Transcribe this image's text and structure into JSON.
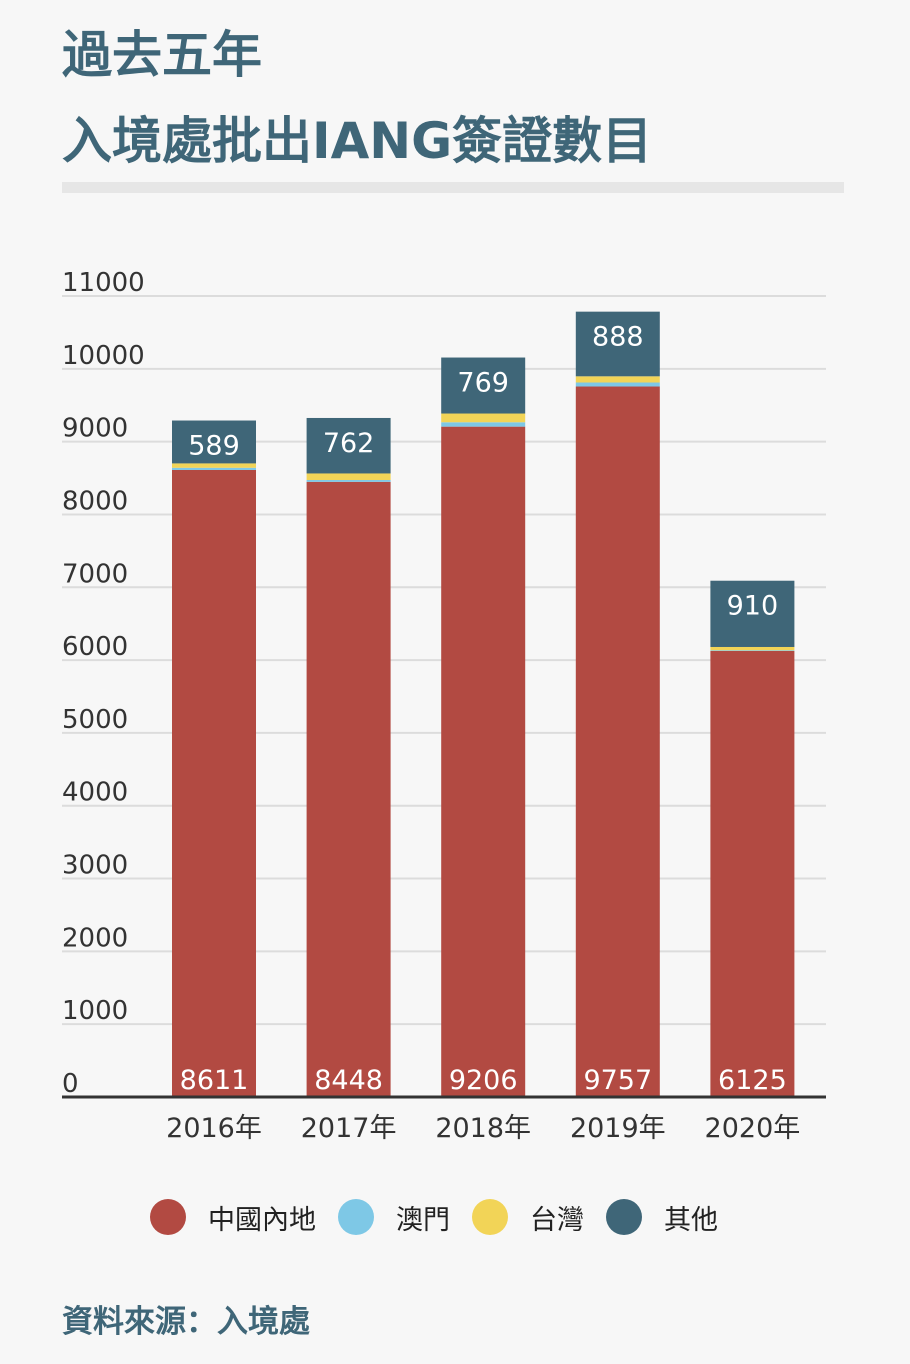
{
  "title": {
    "line1": "過去五年",
    "line2": "入境處批出IANG簽證數目"
  },
  "source": "資料來源：入境處",
  "colors": {
    "mainland": "#b24a42",
    "macau": "#7ec8e6",
    "taiwan": "#f2d457",
    "others": "#3f6678"
  },
  "chart_data": {
    "type": "bar",
    "stacked": true,
    "categories": [
      "2016年",
      "2017年",
      "2018年",
      "2019年",
      "2020年"
    ],
    "ylim": [
      0,
      11000
    ],
    "yticks": [
      "0",
      "1000",
      "2000",
      "3000",
      "4000",
      "5000",
      "6000",
      "7000",
      "8000",
      "9000",
      "10000",
      "11000"
    ],
    "grid": true,
    "legend_position": "bottom",
    "series": [
      {
        "name": "中國內地",
        "color": "#b24a42",
        "values": [
          8611,
          8448,
          9206,
          9757,
          6125
        ],
        "labels": [
          "8611",
          "8448",
          "9206",
          "9757",
          "6125"
        ]
      },
      {
        "name": "澳門",
        "color": "#7ec8e6",
        "values": [
          30,
          25,
          60,
          55,
          10
        ]
      },
      {
        "name": "台灣",
        "color": "#f2d457",
        "values": [
          60,
          90,
          120,
          85,
          45
        ]
      },
      {
        "name": "其他",
        "color": "#3f6678",
        "values": [
          589,
          762,
          769,
          888,
          910
        ],
        "labels": [
          "589",
          "762",
          "769",
          "888",
          "910"
        ]
      }
    ]
  }
}
